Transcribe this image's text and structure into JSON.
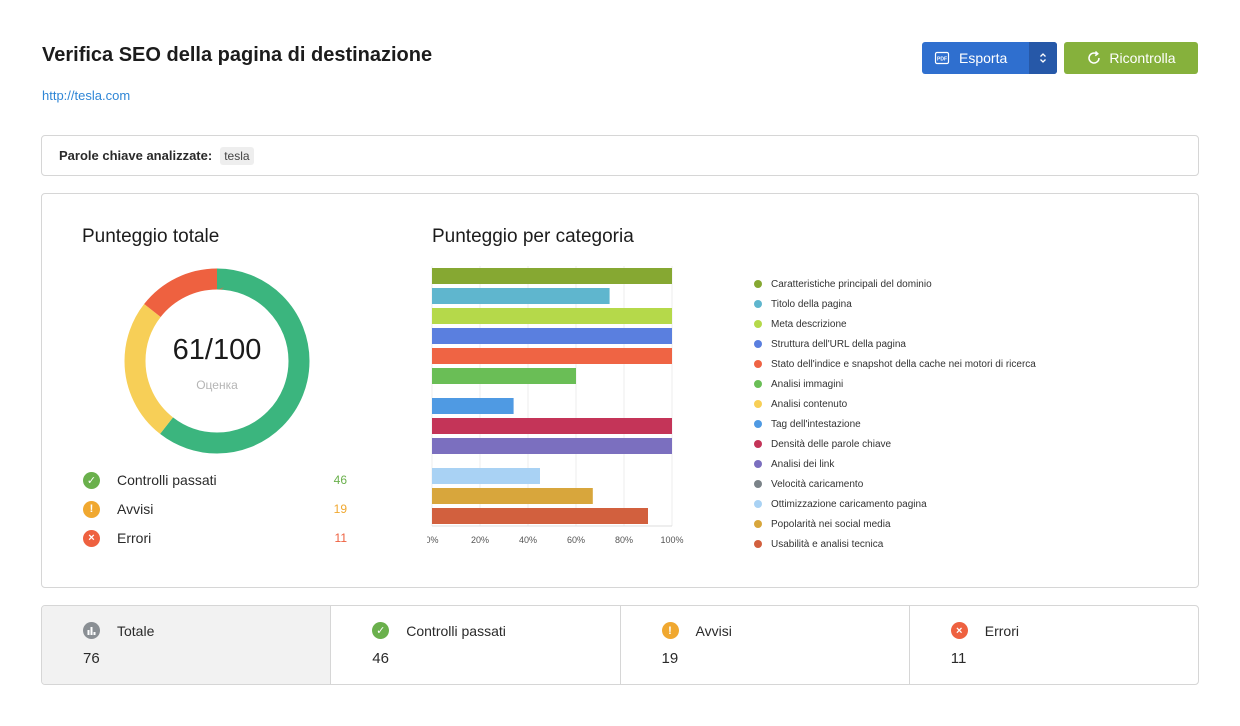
{
  "header": {
    "title": "Verifica SEO della pagina di destinazione",
    "url": "http://tesla.com",
    "export_label": "Esporta",
    "recheck_label": "Ricontrolla",
    "export_color": "#2f6fcf",
    "recheck_color": "#86b13c"
  },
  "keywords": {
    "label": "Parole chiave analizzate:",
    "items": [
      "tesla"
    ]
  },
  "score": {
    "title": "Punteggio totale",
    "value": "61/100",
    "caption": "Оценка",
    "ring": [
      {
        "name": "Controlli passati",
        "value": 46,
        "color": "#3bb57e"
      },
      {
        "name": "Avvisi",
        "value": 19,
        "color": "#f7cf57"
      },
      {
        "name": "Errori",
        "value": 11,
        "color": "#ee6140"
      }
    ]
  },
  "stats": [
    {
      "label": "Controlli passati",
      "value": "46",
      "color": "#6ab04c",
      "icon": "check-icon"
    },
    {
      "label": "Avvisi",
      "value": "19",
      "color": "#f0a830",
      "icon": "warning-icon"
    },
    {
      "label": "Errori",
      "value": "11",
      "color": "#ee6140",
      "icon": "error-icon"
    }
  ],
  "chart_data": {
    "type": "bar",
    "orientation": "horizontal",
    "title": "Punteggio per categoria",
    "xlim": [
      0,
      100
    ],
    "x_ticks": [
      "0%",
      "20%",
      "40%",
      "60%",
      "80%",
      "100%"
    ],
    "grid": true,
    "legend_position": "right",
    "groups": [
      {
        "items": [
          {
            "name": "Caratteristiche principali del dominio",
            "value": 100,
            "color": "#86a832"
          },
          {
            "name": "Titolo della pagina",
            "value": 74,
            "color": "#5fb6ce"
          },
          {
            "name": "Meta descrizione",
            "value": 100,
            "color": "#b5d94a"
          },
          {
            "name": "Struttura dell'URL della pagina",
            "value": 100,
            "color": "#5a7fdf"
          },
          {
            "name": "Stato dell'indice e snapshot della cache nei motori di ricerca",
            "value": 100,
            "color": "#ef6444"
          },
          {
            "name": "Analisi immagini",
            "value": 60,
            "color": "#6abe56"
          }
        ]
      },
      {
        "items": [
          {
            "name": "Analisi contenuto",
            "value": 0,
            "color": "#f8cf56"
          },
          {
            "name": "Tag dell'intestazione",
            "value": 34,
            "color": "#4f9ae3"
          },
          {
            "name": "Densità delle parole chiave",
            "value": 100,
            "color": "#c43458"
          },
          {
            "name": "Analisi dei link",
            "value": 100,
            "color": "#7b6fbf"
          }
        ]
      },
      {
        "items": [
          {
            "name": "Velocità caricamento",
            "value": 0,
            "color": "#7b8388"
          },
          {
            "name": "Ottimizzazione caricamento pagina",
            "value": 45,
            "color": "#a9d2f4"
          },
          {
            "name": "Popolarità nei social media",
            "value": 67,
            "color": "#d8a63c"
          },
          {
            "name": "Usabilità e analisi tecnica",
            "value": 90,
            "color": "#d2603e"
          }
        ]
      }
    ]
  },
  "summary": [
    {
      "label": "Totale",
      "value": "76",
      "color": "#8a8f94",
      "icon": "bar-chart-icon"
    },
    {
      "label": "Controlli passati",
      "value": "46",
      "color": "#6ab04c",
      "icon": "check-icon"
    },
    {
      "label": "Avvisi",
      "value": "19",
      "color": "#f0a830",
      "icon": "warning-icon"
    },
    {
      "label": "Errori",
      "value": "11",
      "color": "#ee6140",
      "icon": "error-icon"
    }
  ]
}
